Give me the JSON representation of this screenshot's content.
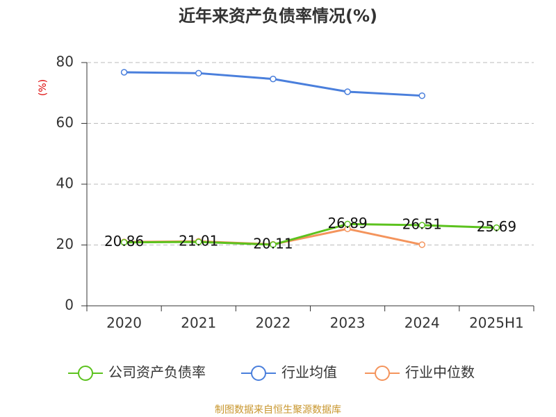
{
  "chart_data": {
    "type": "line",
    "title": "近年来资产负债率情况(%)",
    "y_label": "(%)",
    "categories": [
      "2020",
      "2021",
      "2022",
      "2023",
      "2024",
      "2025H1"
    ],
    "series": [
      {
        "name": "公司资产负债率",
        "color": "#5cc21e",
        "values": [
          20.86,
          21.01,
          20.11,
          26.89,
          26.51,
          25.69
        ],
        "show_labels": true
      },
      {
        "name": "行业均值",
        "color": "#4a7fdc",
        "values": [
          76.8,
          76.5,
          74.6,
          70.4,
          69.1,
          null
        ]
      },
      {
        "name": "行业中位数",
        "color": "#f4945c",
        "values": [
          21.0,
          21.2,
          20.2,
          25.3,
          20.1,
          null
        ]
      }
    ],
    "ylim": [
      0,
      80
    ],
    "yticks": [
      0,
      20,
      40,
      60,
      80
    ],
    "grid": true,
    "source": "制图数据来自恒生聚源数据库"
  }
}
